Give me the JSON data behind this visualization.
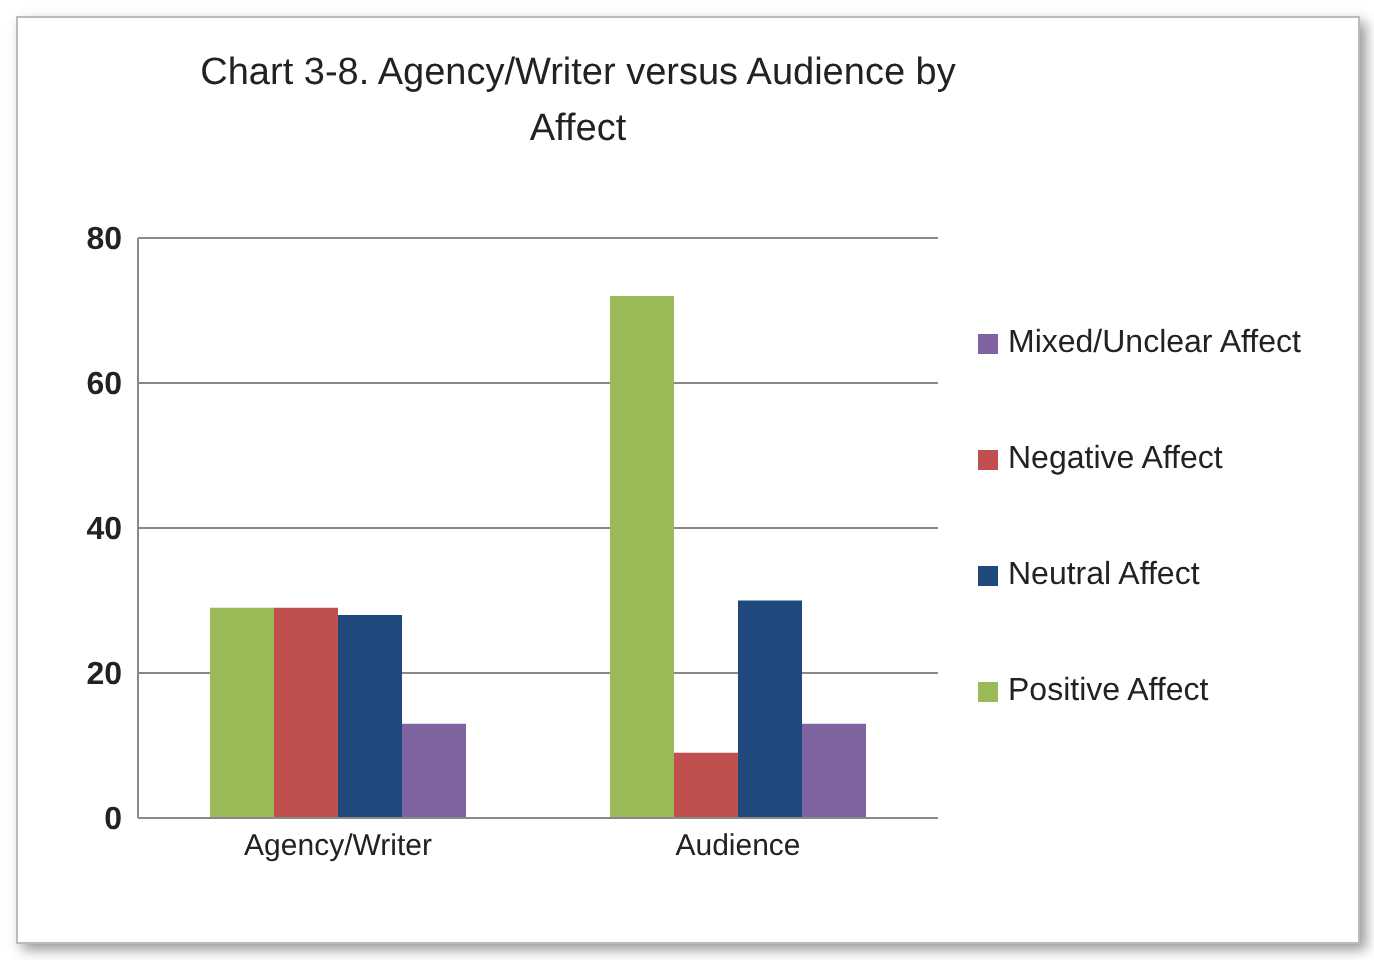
{
  "chart_data": {
    "type": "bar",
    "title": "Chart 3-8. Agency/Writer versus Audience by Affect",
    "categories": [
      "Agency/Writer",
      "Audience"
    ],
    "series": [
      {
        "name": "Positive Affect",
        "color": "#9bbb59",
        "values": [
          29,
          72
        ]
      },
      {
        "name": "Negative Affect",
        "color": "#c0504d",
        "values": [
          29,
          9
        ]
      },
      {
        "name": "Neutral Affect",
        "color": "#1f497d",
        "values": [
          28,
          30
        ]
      },
      {
        "name": "Mixed/Unclear Affect",
        "color": "#8064a2",
        "values": [
          13,
          13
        ]
      }
    ],
    "ylim": [
      0,
      80
    ],
    "yticks": [
      0,
      20,
      40,
      60,
      80
    ],
    "grid": "y",
    "legend": "right"
  }
}
